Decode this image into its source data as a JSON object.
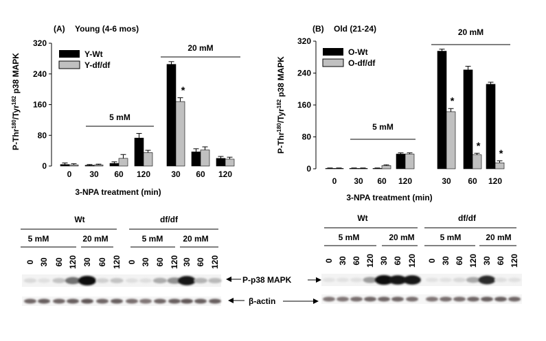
{
  "colors": {
    "wild_type": "#000000",
    "df_df": "#c0c0c0",
    "axis": "#000000"
  },
  "chart_data": [
    {
      "panel_label": "(A)",
      "title": "Young (4-6 mos)",
      "type": "bar",
      "ylabel_prefix": "P-Thr",
      "ylabel_sup1": "180",
      "ylabel_mid": "/Tyr",
      "ylabel_sup2": "182",
      "ylabel_suffix": " p38 MAPK",
      "xlabel": "3-NPA treatment (min)",
      "ylim": [
        0,
        320
      ],
      "yticks": [
        "0",
        "80",
        "160",
        "240",
        "320"
      ],
      "categories": [
        "0",
        "30",
        "60",
        "120",
        "30",
        "60",
        "120"
      ],
      "dose_groups": [
        {
          "label": "5 mM",
          "categories": [
            "0",
            "30",
            "60",
            "120"
          ]
        },
        {
          "label": "20 mM",
          "categories": [
            "30",
            "60",
            "120"
          ]
        }
      ],
      "series": [
        {
          "name": "Y-Wt",
          "values": [
            4,
            2,
            7,
            73,
            265,
            37,
            20
          ],
          "errors": [
            4,
            2,
            4,
            12,
            7,
            8,
            5
          ]
        },
        {
          "name": "Y-df/df",
          "values": [
            3,
            3,
            20,
            35,
            168,
            42,
            18
          ],
          "errors": [
            3,
            2,
            10,
            6,
            10,
            8,
            5
          ]
        }
      ],
      "annotations": [
        {
          "text": "*",
          "series": 1,
          "category_index": 4
        }
      ],
      "legend": "top-left"
    },
    {
      "panel_label": "(B)",
      "title": "Old (21-24)",
      "type": "bar",
      "ylabel_prefix": "P-Thr",
      "ylabel_sup1": "180",
      "ylabel_mid": "/Tyr",
      "ylabel_sup2": "182",
      "ylabel_suffix": " p38 MAPK",
      "xlabel": "3-NPA treatment (min)",
      "ylim": [
        0,
        320
      ],
      "yticks": [
        "0",
        "80",
        "160",
        "240",
        "320"
      ],
      "categories": [
        "0",
        "30",
        "60",
        "120",
        "30",
        "60",
        "120"
      ],
      "dose_groups": [
        {
          "label": "5 mM",
          "categories": [
            "0",
            "30",
            "60",
            "120"
          ]
        },
        {
          "label": "20 mM",
          "categories": [
            "30",
            "60",
            "120"
          ]
        }
      ],
      "series": [
        {
          "name": "O-Wt",
          "values": [
            1,
            1,
            1,
            37,
            295,
            248,
            212
          ],
          "errors": [
            1,
            1,
            1,
            3,
            5,
            9,
            5
          ]
        },
        {
          "name": "O-df/df",
          "values": [
            1,
            1,
            8,
            37,
            143,
            35,
            15
          ],
          "errors": [
            1,
            1,
            2,
            3,
            8,
            4,
            5
          ]
        }
      ],
      "annotations": [
        {
          "text": "*",
          "series": 1,
          "category_index": 4
        },
        {
          "text": "*",
          "series": 1,
          "category_index": 5
        },
        {
          "text": "*",
          "series": 1,
          "category_index": 6
        }
      ],
      "legend": "top-left"
    }
  ],
  "blots": [
    {
      "genotypes": [
        "Wt",
        "df/df"
      ],
      "dose_labels": [
        "5 mM",
        "20 mM"
      ],
      "lane_labels": [
        "0",
        "30",
        "60",
        "120",
        "30",
        "60",
        "120"
      ],
      "p38_intensity": [
        [
          0.08,
          0.05,
          0.18,
          0.55,
          1.0,
          0.12,
          0.18
        ],
        [
          0.06,
          0.06,
          0.28,
          0.4,
          0.95,
          0.25,
          0.22
        ]
      ],
      "actin_intensity": [
        [
          0.55,
          0.6,
          0.55,
          0.6,
          0.65,
          0.55,
          0.6
        ],
        [
          0.5,
          0.45,
          0.55,
          0.6,
          0.65,
          0.6,
          0.6
        ]
      ],
      "markers": [
        "P-p38 MAPK",
        "β-actin"
      ]
    },
    {
      "genotypes": [
        "Wt",
        "df/df"
      ],
      "dose_labels": [
        "5 mM",
        "20 mM"
      ],
      "lane_labels": [
        "0",
        "30",
        "60",
        "120",
        "30",
        "60",
        "120"
      ],
      "p38_intensity": [
        [
          0.04,
          0.04,
          0.05,
          0.35,
          1.0,
          0.95,
          0.95
        ],
        [
          0.04,
          0.04,
          0.08,
          0.3,
          0.85,
          0.06,
          0.05
        ]
      ],
      "actin_intensity": [
        [
          0.45,
          0.45,
          0.5,
          0.55,
          0.55,
          0.55,
          0.5
        ],
        [
          0.45,
          0.5,
          0.5,
          0.55,
          0.6,
          0.6,
          0.55
        ]
      ]
    }
  ]
}
